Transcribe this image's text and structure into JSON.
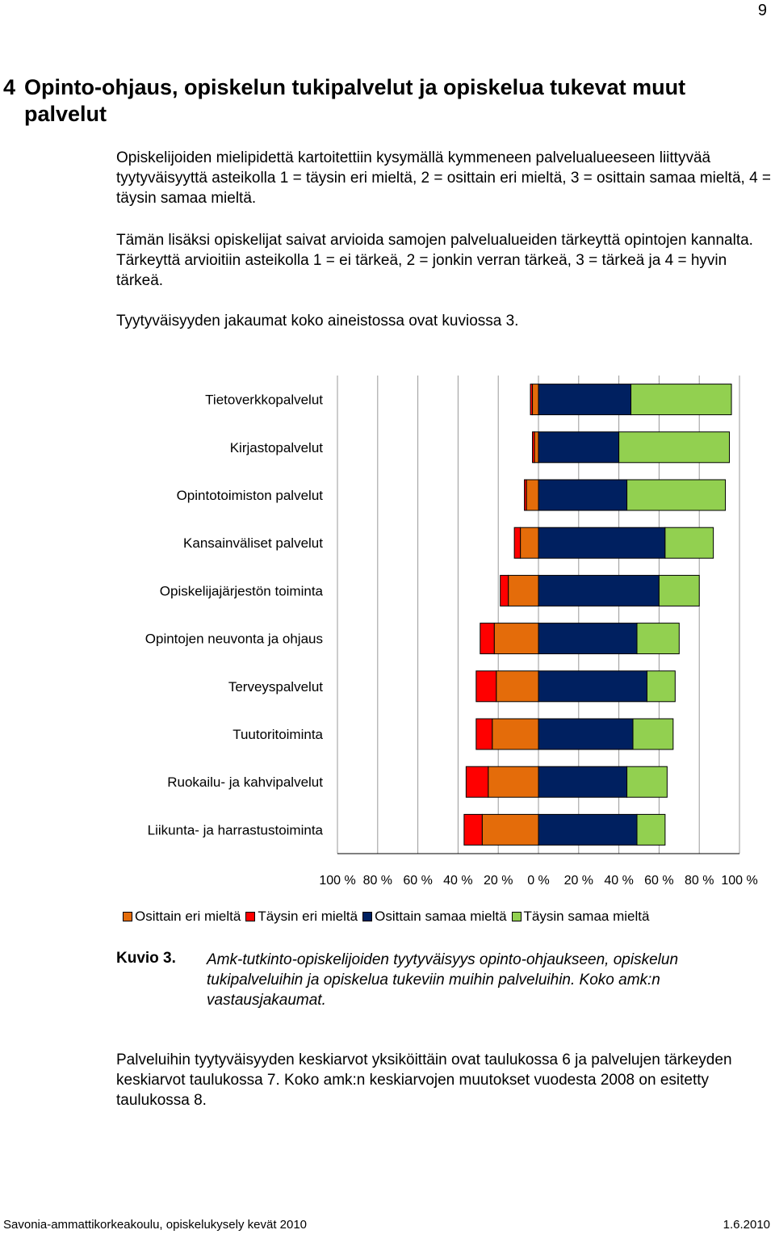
{
  "page_number": "9",
  "heading": {
    "number": "4",
    "title": "Opinto-ohjaus, opiskelun tukipalvelut ja opiskelua tukevat muut palvelut"
  },
  "paragraphs": {
    "p1": "Opiskelijoiden mielipidettä kartoitettiin kysymällä kymmeneen palvelualueeseen liittyvää tyytyväisyyttä asteikolla 1 = täysin eri mieltä, 2 = osittain eri mieltä, 3 = osittain samaa mieltä, 4 = täysin samaa mieltä.",
    "p2": "Tämän lisäksi opiskelijat saivat arvioida samojen palvelualueiden tärkeyttä opintojen kannalta. Tärkeyttä arvioitiin asteikolla 1 = ei tärkeä, 2 = jonkin verran tärkeä, 3 = tärkeä ja 4 = hyvin tärkeä.",
    "p3": "Tyytyväisyyden jakaumat koko aineistossa ovat kuviossa 3.",
    "p4": "Palveluihin tyytyväisyyden keskiarvot yksiköittäin ovat taulukossa 6 ja palvelujen tärkeyden keskiarvot taulukossa 7. Koko amk:n keskiarvojen muutokset vuodesta 2008 on esitetty taulukossa 8."
  },
  "chart_data": {
    "type": "bar",
    "orientation": "horizontal-diverging-stacked",
    "categories": [
      "Tietoverkkopalvelut",
      "Kirjastopalvelut",
      "Opintotoimiston palvelut",
      "Kansainväliset palvelut",
      "Opiskelijajärjestön toiminta",
      "Opintojen neuvonta ja ohjaus",
      "Terveyspalvelut",
      "Tuutoritoiminta",
      "Ruokailu- ja kahvipalvelut",
      "Liikunta- ja harrastustoiminta"
    ],
    "series": [
      {
        "name": "Osittain eri mieltä",
        "color": "#E46C0A",
        "side": "negative",
        "values": [
          3,
          2,
          6,
          9,
          15,
          22,
          21,
          23,
          25,
          28
        ]
      },
      {
        "name": "Täysin eri mieltä",
        "color": "#FF0000",
        "side": "negative",
        "values": [
          1,
          1,
          1,
          3,
          4,
          7,
          10,
          8,
          11,
          9
        ]
      },
      {
        "name": "Osittain samaa mieltä",
        "color": "#002060",
        "side": "positive",
        "values": [
          46,
          40,
          44,
          63,
          60,
          49,
          54,
          47,
          44,
          49
        ]
      },
      {
        "name": "Täysin samaa mieltä",
        "color": "#92D050",
        "side": "positive",
        "values": [
          50,
          55,
          49,
          24,
          20,
          21,
          14,
          20,
          20,
          14
        ]
      }
    ],
    "xlim": [
      -100,
      100
    ],
    "xticks": [
      "100 %",
      "80 %",
      "60 %",
      "40 %",
      "20 %",
      "0 %",
      "20 %",
      "40 %",
      "60 %",
      "80 %",
      "100 %"
    ],
    "grid": true,
    "legend_position": "bottom"
  },
  "caption": {
    "label": "Kuvio 3.",
    "text": "Amk-tutkinto-opiskelijoiden tyytyväisyys opinto-ohjaukseen, opiskelun tukipalveluihin ja opiskelua tukeviin muihin palveluihin. Koko amk:n vastausjakaumat."
  },
  "footer": {
    "left": "Savonia-ammattikorkeakoulu, opiskelukysely kevät 2010",
    "right": "1.6.2010"
  }
}
